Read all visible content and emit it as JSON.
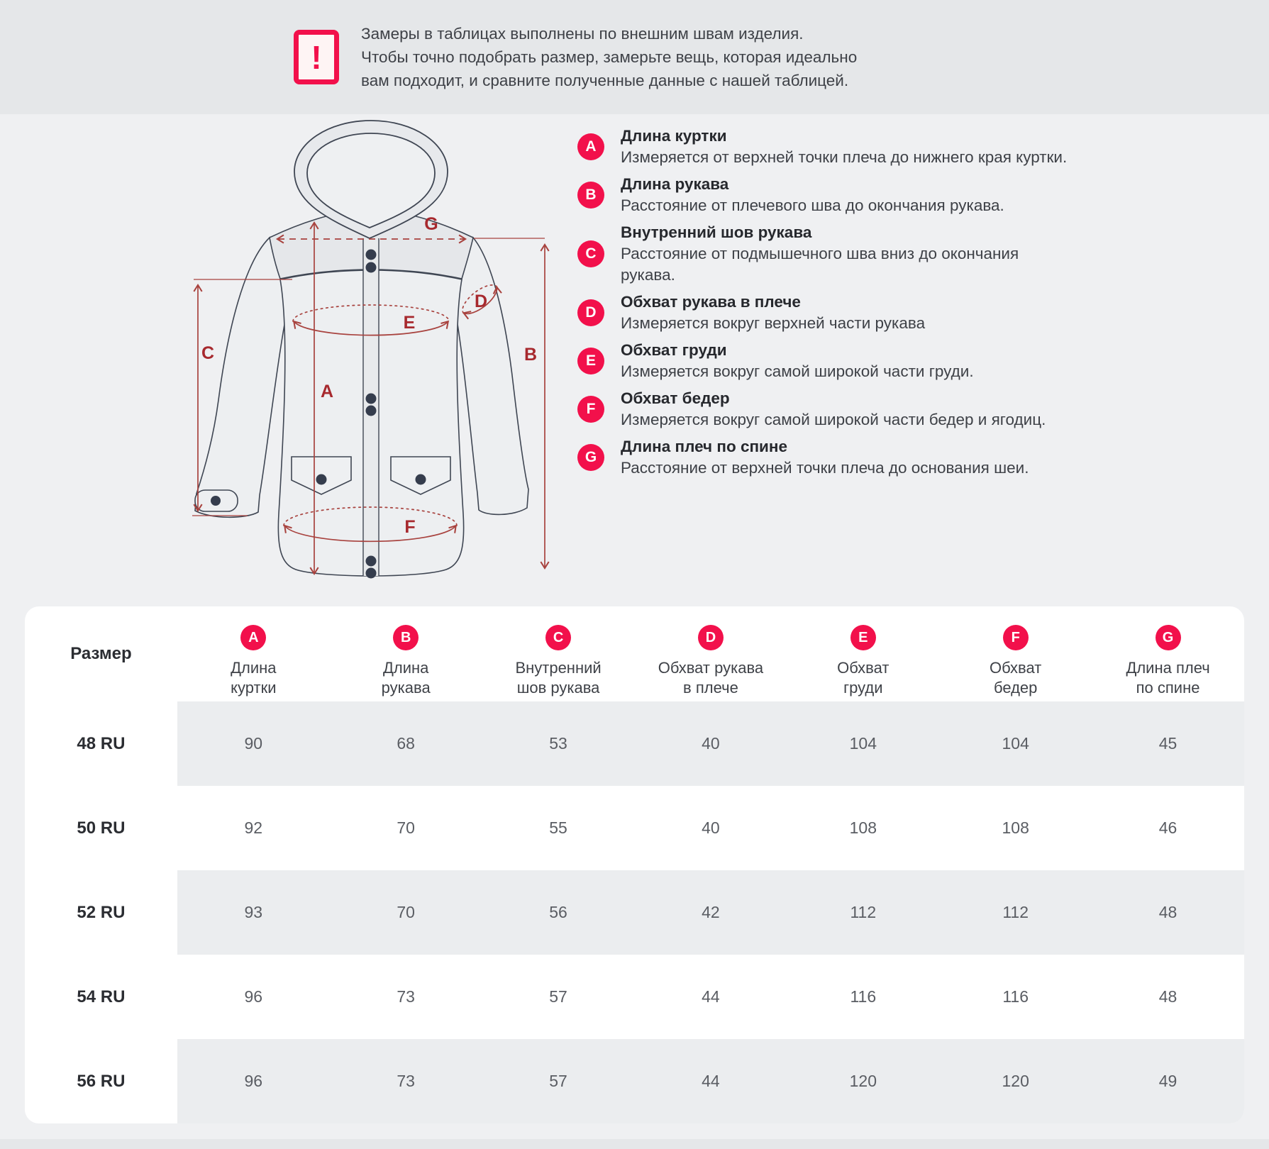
{
  "banner": {
    "icon": "exclamation-icon",
    "lines": [
      "Замеры в таблицах выполнены по внешним швам изделия.",
      "Чтобы точно подобрать размер, замерьте вещь, которая идеально",
      "вам подходит, и сравните полученные данные с нашей таблицей."
    ]
  },
  "legend": {
    "items": [
      {
        "letter": "A",
        "title": "Длина куртки",
        "description": "Измеряется от верхней точки плеча до нижнего края куртки."
      },
      {
        "letter": "B",
        "title": "Длина рукава",
        "description": "Расстояние от плечевого шва до окончания рукава."
      },
      {
        "letter": "C",
        "title": "Внутренний шов рукава",
        "description": "Расстояние от подмышечного шва вниз до окончания\nрукава."
      },
      {
        "letter": "D",
        "title": "Обхват рукава в плече",
        "description": "Измеряется вокруг верхней части рукава"
      },
      {
        "letter": "E",
        "title": "Обхват груди",
        "description": "Измеряется вокруг самой широкой части груди."
      },
      {
        "letter": "F",
        "title": "Обхват бедер",
        "description": "Измеряется вокруг самой широкой части бедер и ягодиц."
      },
      {
        "letter": "G",
        "title": "Длина плеч по спине",
        "description": "Расстояние от верхней точки плеча до основания шеи."
      }
    ]
  },
  "diagram": {
    "labels": {
      "a": "A",
      "b": "B",
      "c": "C",
      "d": "D",
      "e": "E",
      "f": "F",
      "g": "G"
    }
  },
  "table": {
    "size_header": "Размер",
    "columns": [
      {
        "letter": "A",
        "label": "Длина\nкуртки"
      },
      {
        "letter": "B",
        "label": "Длина\nрукава"
      },
      {
        "letter": "C",
        "label": "Внутренний\nшов рукава"
      },
      {
        "letter": "D",
        "label": "Обхват рукава\nв плече"
      },
      {
        "letter": "E",
        "label": "Обхват\nгруди"
      },
      {
        "letter": "F",
        "label": "Обхват\nбедер"
      },
      {
        "letter": "G",
        "label": "Длина плеч\nпо спине"
      }
    ],
    "rows": [
      {
        "size": "48 RU",
        "values": [
          "90",
          "68",
          "53",
          "40",
          "104",
          "104",
          "45"
        ],
        "striped": true
      },
      {
        "size": "50 RU",
        "values": [
          "92",
          "70",
          "55",
          "40",
          "108",
          "108",
          "46"
        ],
        "striped": false
      },
      {
        "size": "52 RU",
        "values": [
          "93",
          "70",
          "56",
          "42",
          "112",
          "112",
          "48"
        ],
        "striped": true
      },
      {
        "size": "54 RU",
        "values": [
          "96",
          "73",
          "57",
          "44",
          "116",
          "116",
          "48"
        ],
        "striped": false
      },
      {
        "size": "56 RU",
        "values": [
          "96",
          "73",
          "57",
          "44",
          "120",
          "120",
          "49"
        ],
        "striped": true
      }
    ]
  },
  "colors": {
    "accent": "#f2104b",
    "banner_bg": "#e5e7e9",
    "section_bg": "#eff0f2",
    "card_bg": "#ffffff",
    "row_stripe": "#ebedef",
    "diagram_line": "#a8423e",
    "diagram_label": "#a7292e",
    "jacket_outline": "#3f4653"
  }
}
